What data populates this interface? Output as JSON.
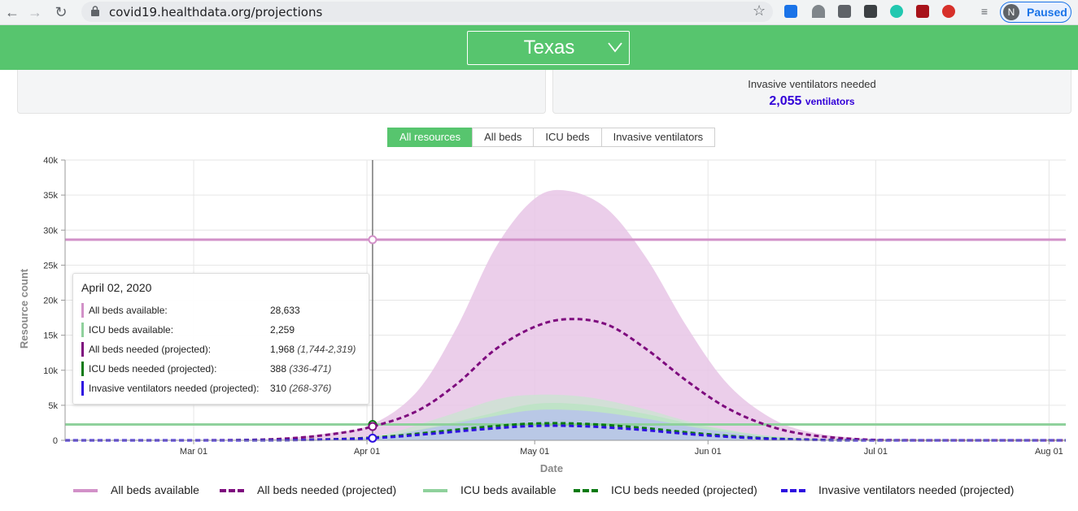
{
  "browser": {
    "url": "covid19.healthdata.org/projections",
    "profile_initial": "N",
    "profile_status": "Paused"
  },
  "header": {
    "location": "Texas"
  },
  "summary": {
    "ventilators_title": "Invasive ventilators needed",
    "ventilators_value": "2,055",
    "ventilators_unit": "ventilators"
  },
  "tabs": [
    "All resources",
    "All beds",
    "ICU beds",
    "Invasive ventilators"
  ],
  "active_tab": 0,
  "tooltip": {
    "date": "April 02, 2020",
    "rows": [
      {
        "label": "All beds available:",
        "value": "28,633",
        "range": "",
        "color": "#d291c8"
      },
      {
        "label": "ICU beds available:",
        "value": "2,259",
        "range": "",
        "color": "#8fd19c"
      },
      {
        "label": "All beds needed (projected):",
        "value": "1,968",
        "range": "(1,744-2,319)",
        "color": "#7e0b7e"
      },
      {
        "label": "ICU beds needed (projected):",
        "value": "388",
        "range": "(336-471)",
        "color": "#0a7a12"
      },
      {
        "label": "Invasive ventilators needed (projected):",
        "value": "310",
        "range": "(268-376)",
        "color": "#2e10e0"
      }
    ]
  },
  "legend": [
    {
      "label": "All beds available",
      "color": "#d291c8",
      "style": "solid"
    },
    {
      "label": "All beds needed (projected)",
      "color": "#7e0b7e",
      "style": "dashed"
    },
    {
      "label": "ICU beds available",
      "color": "#8fd19c",
      "style": "solid"
    },
    {
      "label": "ICU beds needed (projected)",
      "color": "#0a7a12",
      "style": "dashed"
    },
    {
      "label": "Invasive ventilators needed (projected)",
      "color": "#2e10e0",
      "style": "dashed"
    }
  ],
  "chart_data": {
    "type": "area",
    "xlabel": "Date",
    "ylabel": "Resource count",
    "x_ticks": [
      "Mar 01",
      "Apr 01",
      "May 01",
      "Jun 01",
      "Jul 01",
      "Aug 01"
    ],
    "y_ticks": [
      "0",
      "5k",
      "10k",
      "15k",
      "20k",
      "25k",
      "30k",
      "35k",
      "40k"
    ],
    "xlim": [
      "2020-02-07",
      "2020-08-04"
    ],
    "ylim": [
      0,
      40000
    ],
    "grid": true,
    "crosshair_date": "2020-04-02",
    "series": [
      {
        "name": "All beds available",
        "type": "hline",
        "color": "#d291c8",
        "value": 28633
      },
      {
        "name": "ICU beds available",
        "type": "hline",
        "color": "#8fd19c",
        "value": 2259
      },
      {
        "name": "All beds needed (projected)",
        "color": "#7e0b7e",
        "band_color": "#e8c6e6",
        "points": [
          [
            "2020-02-07",
            0
          ],
          [
            "2020-03-01",
            0
          ],
          [
            "2020-03-15",
            150
          ],
          [
            "2020-03-25",
            800
          ],
          [
            "2020-04-02",
            1968
          ],
          [
            "2020-04-10",
            4200
          ],
          [
            "2020-04-17",
            8000
          ],
          [
            "2020-04-24",
            13000
          ],
          [
            "2020-05-01",
            16200
          ],
          [
            "2020-05-07",
            17300
          ],
          [
            "2020-05-14",
            16500
          ],
          [
            "2020-05-21",
            13000
          ],
          [
            "2020-05-28",
            8600
          ],
          [
            "2020-06-04",
            4800
          ],
          [
            "2020-06-11",
            2300
          ],
          [
            "2020-06-18",
            900
          ],
          [
            "2020-06-28",
            150
          ],
          [
            "2020-07-10",
            0
          ],
          [
            "2020-08-04",
            0
          ]
        ],
        "upper": [
          [
            "2020-02-07",
            0
          ],
          [
            "2020-03-01",
            0
          ],
          [
            "2020-03-15",
            200
          ],
          [
            "2020-03-25",
            1000
          ],
          [
            "2020-04-02",
            2319
          ],
          [
            "2020-04-10",
            7000
          ],
          [
            "2020-04-17",
            16000
          ],
          [
            "2020-04-24",
            27500
          ],
          [
            "2020-05-01",
            34500
          ],
          [
            "2020-05-07",
            35600
          ],
          [
            "2020-05-14",
            33000
          ],
          [
            "2020-05-21",
            26000
          ],
          [
            "2020-05-28",
            16500
          ],
          [
            "2020-06-04",
            8500
          ],
          [
            "2020-06-11",
            3800
          ],
          [
            "2020-06-18",
            1400
          ],
          [
            "2020-06-28",
            300
          ],
          [
            "2020-07-10",
            0
          ],
          [
            "2020-08-04",
            0
          ]
        ],
        "lower": [
          [
            "2020-02-07",
            0
          ],
          [
            "2020-03-01",
            0
          ],
          [
            "2020-03-15",
            120
          ],
          [
            "2020-03-25",
            650
          ],
          [
            "2020-04-02",
            1744
          ],
          [
            "2020-04-10",
            2600
          ],
          [
            "2020-04-17",
            3300
          ],
          [
            "2020-04-24",
            3700
          ],
          [
            "2020-05-01",
            3600
          ],
          [
            "2020-05-07",
            3200
          ],
          [
            "2020-05-14",
            2600
          ],
          [
            "2020-05-21",
            1900
          ],
          [
            "2020-05-28",
            1200
          ],
          [
            "2020-06-04",
            600
          ],
          [
            "2020-06-11",
            250
          ],
          [
            "2020-06-18",
            80
          ],
          [
            "2020-06-28",
            0
          ],
          [
            "2020-07-10",
            0
          ],
          [
            "2020-08-04",
            0
          ]
        ]
      },
      {
        "name": "ICU beds needed (projected)",
        "color": "#0a7a12",
        "band_color": "#b8e4c1",
        "points": [
          [
            "2020-02-07",
            0
          ],
          [
            "2020-03-01",
            0
          ],
          [
            "2020-03-20",
            60
          ],
          [
            "2020-04-02",
            388
          ],
          [
            "2020-04-12",
            1100
          ],
          [
            "2020-04-22",
            1900
          ],
          [
            "2020-05-01",
            2400
          ],
          [
            "2020-05-10",
            2350
          ],
          [
            "2020-05-20",
            1800
          ],
          [
            "2020-05-30",
            1000
          ],
          [
            "2020-06-10",
            350
          ],
          [
            "2020-06-20",
            80
          ],
          [
            "2020-07-01",
            0
          ],
          [
            "2020-08-04",
            0
          ]
        ],
        "upper": [
          [
            "2020-02-07",
            0
          ],
          [
            "2020-03-01",
            0
          ],
          [
            "2020-03-20",
            80
          ],
          [
            "2020-04-02",
            471
          ],
          [
            "2020-04-12",
            1800
          ],
          [
            "2020-04-22",
            3600
          ],
          [
            "2020-05-01",
            5200
          ],
          [
            "2020-05-10",
            5100
          ],
          [
            "2020-05-20",
            3900
          ],
          [
            "2020-05-30",
            2200
          ],
          [
            "2020-06-10",
            800
          ],
          [
            "2020-06-20",
            200
          ],
          [
            "2020-07-01",
            0
          ],
          [
            "2020-08-04",
            0
          ]
        ],
        "lower": [
          [
            "2020-02-07",
            0
          ],
          [
            "2020-03-01",
            0
          ],
          [
            "2020-03-20",
            50
          ],
          [
            "2020-04-02",
            336
          ],
          [
            "2020-04-12",
            700
          ],
          [
            "2020-04-22",
            1000
          ],
          [
            "2020-05-01",
            1100
          ],
          [
            "2020-05-10",
            1000
          ],
          [
            "2020-05-20",
            700
          ],
          [
            "2020-05-30",
            350
          ],
          [
            "2020-06-10",
            100
          ],
          [
            "2020-06-20",
            20
          ],
          [
            "2020-07-01",
            0
          ],
          [
            "2020-08-04",
            0
          ]
        ]
      },
      {
        "name": "Invasive ventilators needed (projected)",
        "color": "#2e10e0",
        "band_color": "#b7bff0",
        "points": [
          [
            "2020-02-07",
            0
          ],
          [
            "2020-03-01",
            0
          ],
          [
            "2020-03-20",
            50
          ],
          [
            "2020-04-02",
            310
          ],
          [
            "2020-04-12",
            900
          ],
          [
            "2020-04-22",
            1600
          ],
          [
            "2020-05-01",
            2055
          ],
          [
            "2020-05-10",
            2000
          ],
          [
            "2020-05-20",
            1500
          ],
          [
            "2020-05-30",
            800
          ],
          [
            "2020-06-10",
            280
          ],
          [
            "2020-06-20",
            60
          ],
          [
            "2020-07-01",
            0
          ],
          [
            "2020-08-04",
            0
          ]
        ],
        "upper": [
          [
            "2020-02-07",
            0
          ],
          [
            "2020-03-01",
            0
          ],
          [
            "2020-03-20",
            70
          ],
          [
            "2020-04-02",
            376
          ],
          [
            "2020-04-12",
            1700
          ],
          [
            "2020-04-22",
            3200
          ],
          [
            "2020-05-01",
            4300
          ],
          [
            "2020-05-10",
            4200
          ],
          [
            "2020-05-20",
            3200
          ],
          [
            "2020-05-30",
            1800
          ],
          [
            "2020-06-10",
            600
          ],
          [
            "2020-06-20",
            150
          ],
          [
            "2020-07-01",
            0
          ],
          [
            "2020-08-04",
            0
          ]
        ],
        "lower": [
          [
            "2020-02-07",
            0
          ],
          [
            "2020-03-01",
            0
          ],
          [
            "2020-03-20",
            40
          ],
          [
            "2020-04-02",
            268
          ],
          [
            "2020-04-12",
            600
          ],
          [
            "2020-04-22",
            850
          ],
          [
            "2020-05-01",
            950
          ],
          [
            "2020-05-10",
            850
          ],
          [
            "2020-05-20",
            600
          ],
          [
            "2020-05-30",
            300
          ],
          [
            "2020-06-10",
            90
          ],
          [
            "2020-06-20",
            15
          ],
          [
            "2020-07-01",
            0
          ],
          [
            "2020-08-04",
            0
          ]
        ]
      }
    ],
    "extra_band": {
      "name": "ICU band (light)",
      "color": "#c8e7cf",
      "upper": [
        [
          "2020-02-07",
          0
        ],
        [
          "2020-03-20",
          100
        ],
        [
          "2020-04-02",
          500
        ],
        [
          "2020-04-14",
          3200
        ],
        [
          "2020-04-24",
          5800
        ],
        [
          "2020-05-01",
          6500
        ],
        [
          "2020-05-10",
          6200
        ],
        [
          "2020-05-20",
          4600
        ],
        [
          "2020-05-30",
          2400
        ],
        [
          "2020-06-10",
          800
        ],
        [
          "2020-06-20",
          200
        ],
        [
          "2020-07-01",
          0
        ],
        [
          "2020-08-04",
          0
        ]
      ]
    }
  }
}
